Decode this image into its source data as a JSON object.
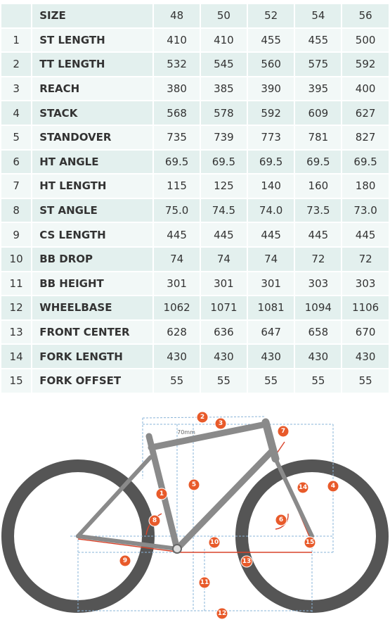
{
  "table": {
    "header": {
      "label": "SIZE",
      "sizes": [
        "48",
        "50",
        "52",
        "54",
        "56"
      ]
    },
    "rows": [
      [
        "1",
        "ST LENGTH",
        "410",
        "410",
        "455",
        "455",
        "500"
      ],
      [
        "2",
        "TT LENGTH",
        "532",
        "545",
        "560",
        "575",
        "592"
      ],
      [
        "3",
        "REACH",
        "380",
        "385",
        "390",
        "395",
        "400"
      ],
      [
        "4",
        "STACK",
        "568",
        "578",
        "592",
        "609",
        "627"
      ],
      [
        "5",
        "STANDOVER",
        "735",
        "739",
        "773",
        "781",
        "827"
      ],
      [
        "6",
        "HT ANGLE",
        "69.5",
        "69.5",
        "69.5",
        "69.5",
        "69.5"
      ],
      [
        "7",
        "HT LENGTH",
        "115",
        "125",
        "140",
        "160",
        "180"
      ],
      [
        "8",
        "ST ANGLE",
        "75.0",
        "74.5",
        "74.0",
        "73.5",
        "73.0"
      ],
      [
        "9",
        "CS LENGTH",
        "445",
        "445",
        "445",
        "445",
        "445"
      ],
      [
        "10",
        "BB DROP",
        "74",
        "74",
        "74",
        "72",
        "72"
      ],
      [
        "11",
        "BB HEIGHT",
        "301",
        "301",
        "301",
        "303",
        "303"
      ],
      [
        "12",
        "WHEELBASE",
        "1062",
        "1071",
        "1081",
        "1094",
        "1106"
      ],
      [
        "13",
        "FRONT CENTER",
        "628",
        "636",
        "647",
        "658",
        "670"
      ],
      [
        "14",
        "FORK LENGTH",
        "430",
        "430",
        "430",
        "430",
        "430"
      ],
      [
        "15",
        "FORK OFFSET",
        "55",
        "55",
        "55",
        "55",
        "55"
      ]
    ]
  },
  "diagram": {
    "callouts": [
      "1",
      "2",
      "3",
      "4",
      "5",
      "6",
      "7",
      "8",
      "9",
      "10",
      "11",
      "12",
      "13",
      "14",
      "15"
    ],
    "note": "70mm"
  }
}
